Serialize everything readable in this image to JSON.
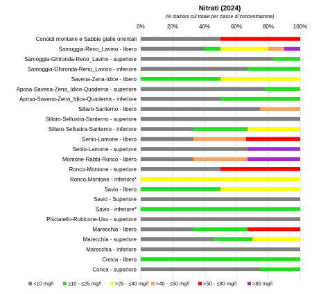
{
  "chart_data": {
    "type": "bar",
    "orientation": "horizontal",
    "stacked": true,
    "title": "Nitrati (2024)",
    "subtitle": "(% stazioni sul totale per classe di concentrazione)",
    "xlim": [
      0,
      100
    ],
    "x_ticks": [
      "0%",
      "20%",
      "40%",
      "60%",
      "80%",
      "100%"
    ],
    "grid": true,
    "legend_position": "bottom",
    "categories": [
      "Conoidi montane e Sabbie gialle orientali",
      "Samoggia-Reno_Lavino - libero",
      "Samoggia-Ghironda-Reno_Lavino - superiore",
      "Samoggia-Ghironda-Reno_Lavino - inferiore",
      "Savena-Zena-Idice - libero",
      "Aposa-Savena-Zena_Idice-Quaderna - superiore",
      "Aposa-Savena-Zena_Idice-Quaderna - inferiore",
      "Sillaro-Santerno - libero",
      "Sillaro-Sellustra-Santerno - superiore",
      "Sillaro-Sellustra-Santerno - inferiore",
      "Senio-Lamone - libero",
      "Senio-Lamone - superiore",
      "Montone-Rabbi-Ronco - libero",
      "Ronco-Montone - superiore",
      "Ronco-Montone - inferiore*",
      "Savio - libero",
      "Savio - Superiore",
      "Savio - inferiore*",
      "Pisciatello-Rubicone-Uso - superiore",
      "Marecchia - libero",
      "Marecchia - superiore",
      "Marecchia - inferiore",
      "Conca - libero",
      "Conca - superiore"
    ],
    "series": [
      {
        "name": "<10 mg/l",
        "color": "#808080",
        "values": [
          50,
          40,
          83,
          67,
          0,
          78,
          50,
          75,
          100,
          33,
          33,
          67,
          33,
          50,
          0,
          0,
          100,
          0,
          100,
          33,
          46,
          100,
          0,
          75
        ]
      },
      {
        "name": "≥10 - ≤25 mg/l",
        "color": "#22dd22",
        "values": [
          0,
          10,
          17,
          33,
          50,
          22,
          50,
          0,
          0,
          34,
          0,
          0,
          0,
          0,
          0,
          50,
          0,
          100,
          0,
          34,
          24,
          0,
          100,
          25
        ]
      },
      {
        "name": ">25 - ≤40 mg/l",
        "color": "#ffff00",
        "values": [
          0,
          30,
          0,
          0,
          50,
          0,
          0,
          0,
          0,
          33,
          0,
          0,
          0,
          0,
          100,
          50,
          0,
          0,
          0,
          0,
          30,
          0,
          0,
          0
        ]
      },
      {
        "name": ">40 - ≤50 mg/l",
        "color": "#f4a460",
        "values": [
          0,
          10,
          0,
          0,
          0,
          0,
          0,
          25,
          0,
          0,
          33,
          0,
          34,
          0,
          0,
          0,
          0,
          0,
          0,
          0,
          0,
          0,
          0,
          0
        ]
      },
      {
        "name": ">50 - ≤80 mg/l",
        "color": "#ff0000",
        "values": [
          50,
          0,
          0,
          0,
          0,
          0,
          0,
          0,
          0,
          0,
          34,
          0,
          0,
          50,
          0,
          0,
          0,
          0,
          0,
          33,
          0,
          0,
          0,
          0
        ]
      },
      {
        "name": ">80 mg/l",
        "color": "#9932cc",
        "values": [
          0,
          10,
          0,
          0,
          0,
          0,
          0,
          0,
          0,
          0,
          0,
          33,
          33,
          0,
          0,
          0,
          0,
          0,
          0,
          0,
          0,
          0,
          0,
          0
        ]
      }
    ]
  }
}
